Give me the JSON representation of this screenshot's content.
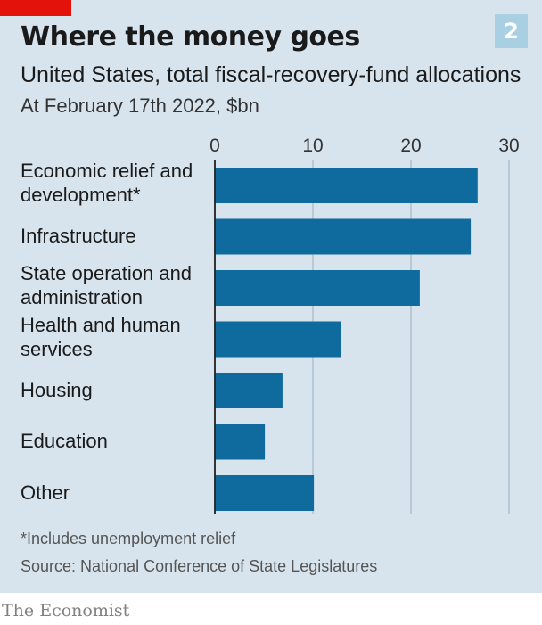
{
  "header": {
    "title": "Where the money goes",
    "badge": "2",
    "subtitle": "United States, total fiscal-recovery-fund allocations",
    "units": "At February 17th 2022, $bn"
  },
  "colors": {
    "bar": "#0f6a9e",
    "panel": "#d7e4ee",
    "accent_red": "#e3120b",
    "gridline": "#9ab0c0",
    "badge": "#a9cfe2"
  },
  "chart_data": {
    "type": "bar",
    "orientation": "horizontal",
    "categories": [
      [
        "Economic relief and",
        "development*"
      ],
      [
        "Infrastructure"
      ],
      [
        "State operation and",
        "administration"
      ],
      [
        "Health and human",
        "services"
      ],
      [
        "Housing"
      ],
      [
        "Education"
      ],
      [
        "Other"
      ]
    ],
    "values": [
      26.8,
      26.1,
      20.9,
      12.9,
      6.9,
      5.1,
      10.1
    ],
    "xlim": [
      0,
      30
    ],
    "xticks": [
      "0",
      "10",
      "20",
      "30"
    ],
    "grid": true,
    "xaxis_position": "top"
  },
  "footer": {
    "footnote": "*Includes unemployment relief",
    "source": "Source: National Conference of State Legislatures",
    "brand": "The Economist"
  }
}
